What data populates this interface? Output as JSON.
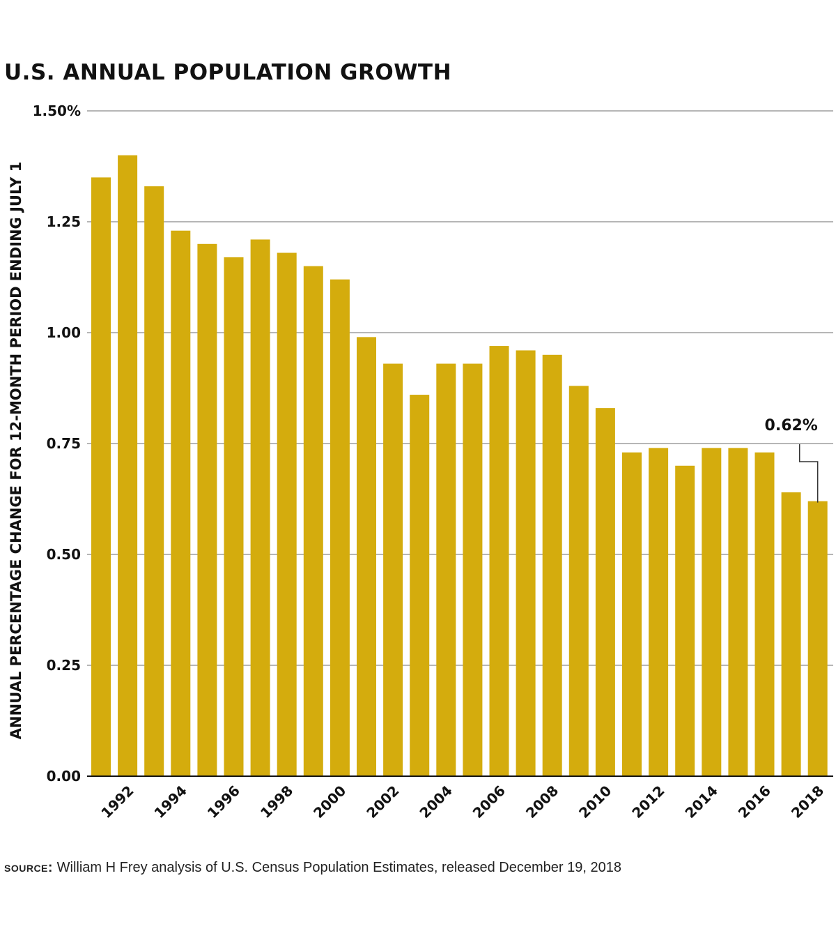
{
  "chart_data": {
    "type": "bar",
    "title": "U.S. ANNUAL POPULATION GROWTH",
    "ylabel": "ANNUAL PERCENTAGE CHANGE FOR 12-MONTH PERIOD ENDING JULY 1",
    "xlabel": "",
    "ylim": [
      0,
      1.5
    ],
    "yticks": [
      0,
      0.25,
      0.5,
      0.75,
      1.0,
      1.25,
      1.5
    ],
    "ytick_labels": [
      "0.00",
      "0.25",
      "0.50",
      "0.75",
      "1.00",
      "1.25",
      "1.50%"
    ],
    "grid": true,
    "categories": [
      1991,
      1992,
      1993,
      1994,
      1995,
      1996,
      1997,
      1998,
      1999,
      2000,
      2001,
      2002,
      2003,
      2004,
      2005,
      2006,
      2007,
      2008,
      2009,
      2010,
      2011,
      2012,
      2013,
      2014,
      2015,
      2016,
      2017,
      2018
    ],
    "xtick_labels": [
      "1992",
      "1994",
      "1996",
      "1998",
      "2000",
      "2002",
      "2004",
      "2006",
      "2008",
      "2010",
      "2012",
      "2014",
      "2016",
      "2018"
    ],
    "values": [
      1.35,
      1.4,
      1.33,
      1.23,
      1.2,
      1.17,
      1.21,
      1.18,
      1.15,
      1.12,
      0.99,
      0.93,
      0.86,
      0.93,
      0.93,
      0.97,
      0.96,
      0.95,
      0.88,
      0.83,
      0.73,
      0.74,
      0.7,
      0.74,
      0.74,
      0.73,
      0.64,
      0.62
    ],
    "annotation": {
      "category": 2018,
      "value": 0.62,
      "text": "0.62%"
    },
    "bar_color": "#d4ac0d"
  },
  "source": {
    "label": "source:",
    "text": " William H Frey analysis of U.S. Census Population Estimates, released December 19, 2018"
  }
}
